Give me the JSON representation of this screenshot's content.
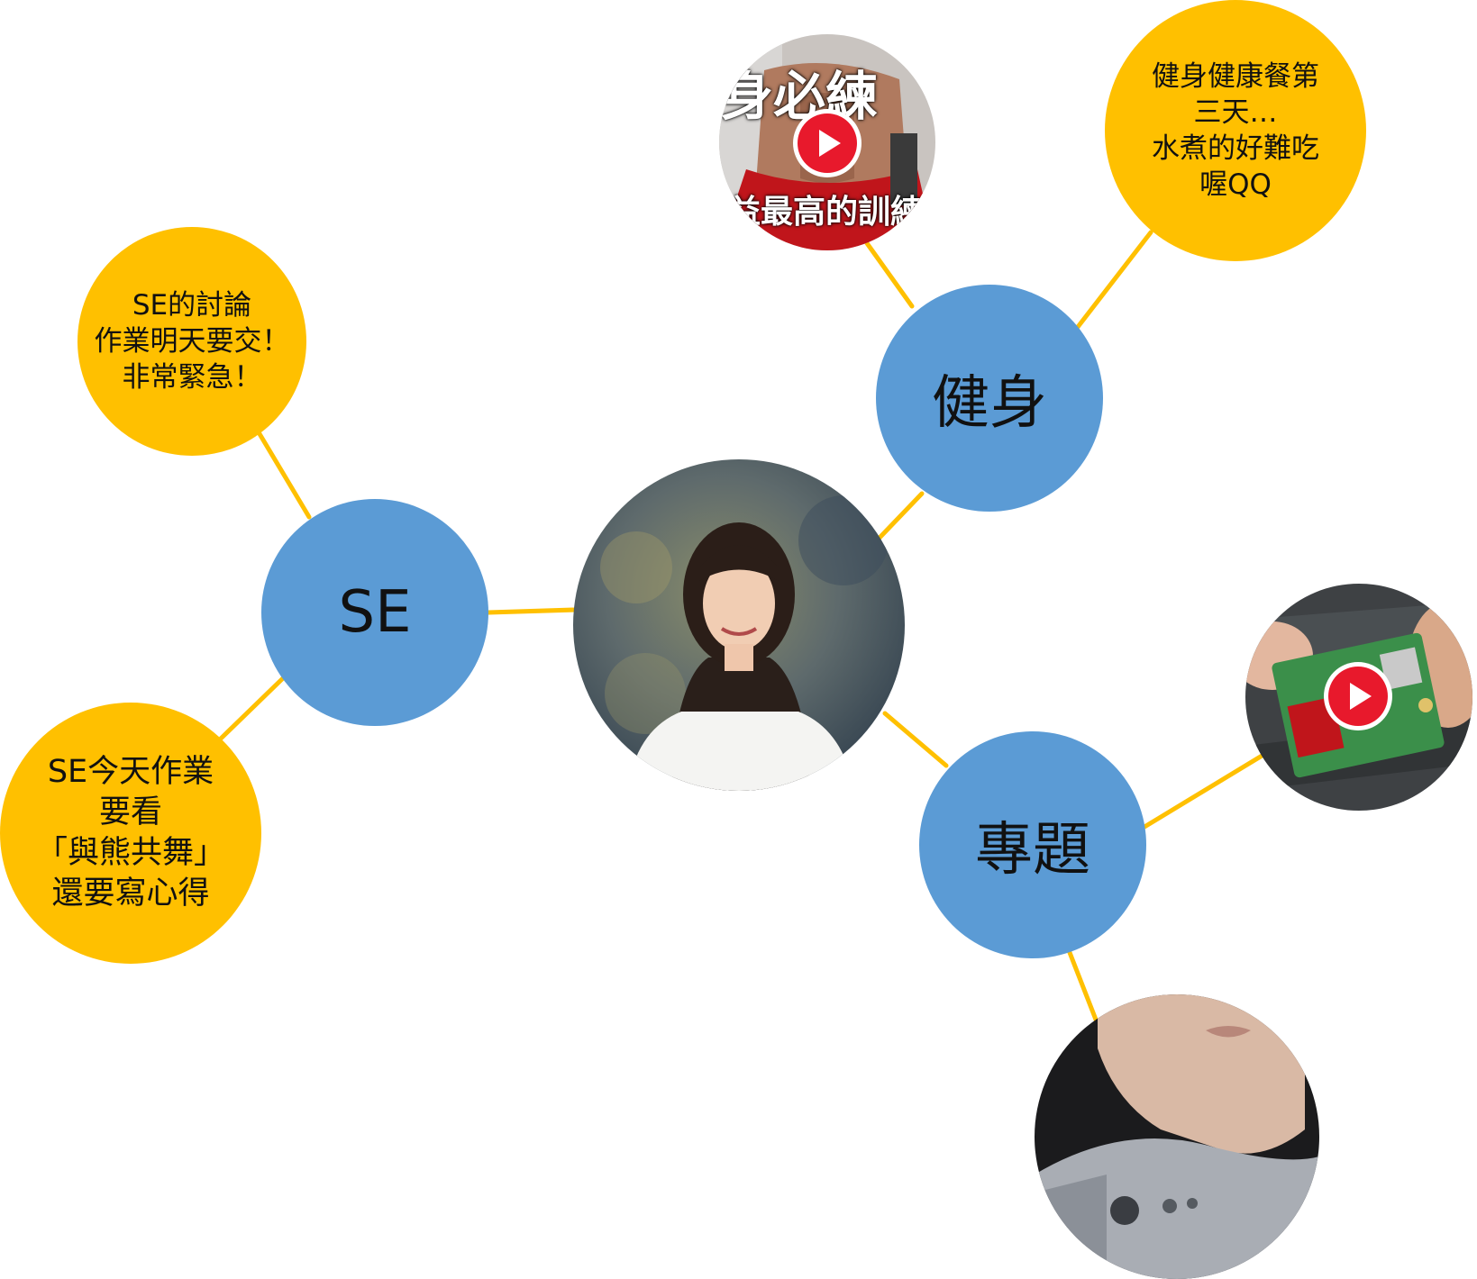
{
  "colors": {
    "topic": "#5b9bd5",
    "note": "#ffc000",
    "edge": "#ffc000",
    "play": "#e8192c"
  },
  "center": {
    "icon": "profile-photo"
  },
  "topics": {
    "se": "SE",
    "fitness": "健身",
    "project": "專題"
  },
  "notes": {
    "se_discussion": "SE的討論\n作業明天要交！\n非常緊急！",
    "se_homework": "SE今天作業\n要看\n「與熊共舞」\n還要寫心得",
    "fitness_meal": "健身健康餐第\n三天…\n水煮的好難吃\n喔QQ"
  },
  "media": {
    "fitness_video": {
      "icon": "play-icon",
      "title_text": "身必練",
      "caption_text": "益最高的訓練"
    },
    "project_video": {
      "icon": "play-icon"
    },
    "project_image": {
      "icon": "photo-thumbnail"
    }
  }
}
